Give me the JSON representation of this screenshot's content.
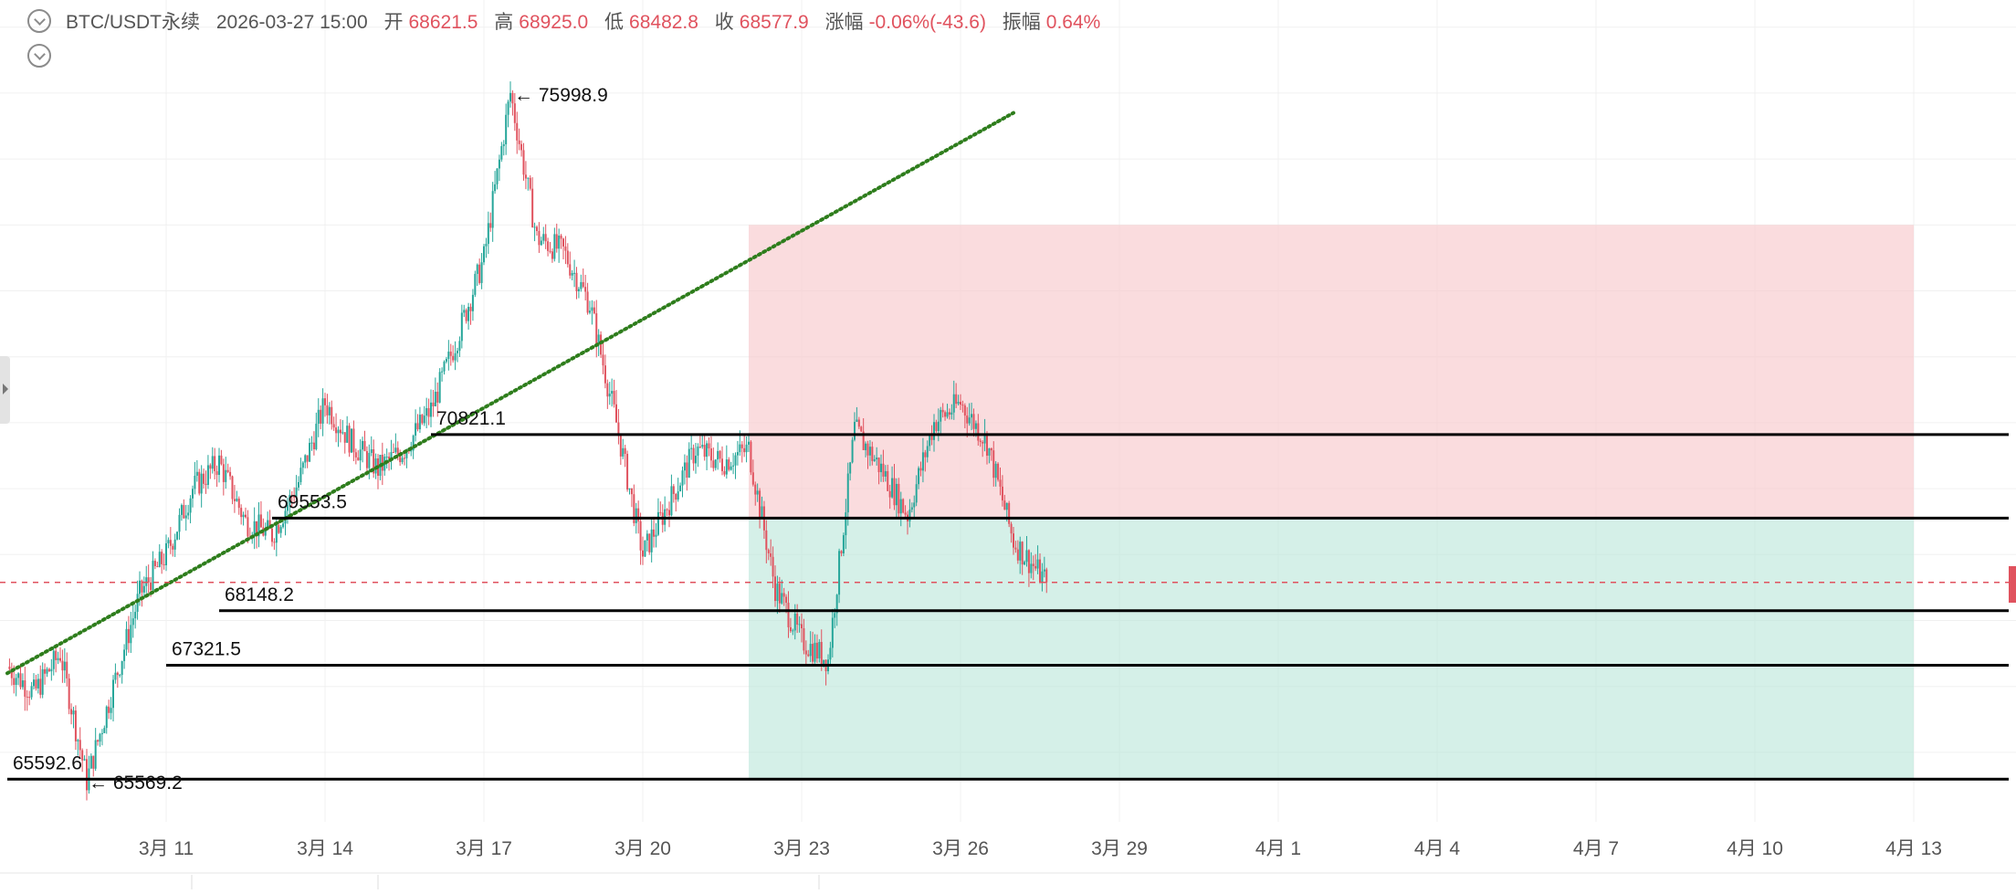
{
  "header": {
    "symbol": "BTC/USDT永续",
    "datetime": "2026-03-27 15:00",
    "open_label": "开",
    "open_value": "68621.5",
    "high_label": "高",
    "high_value": "68925.0",
    "low_label": "低",
    "low_value": "68482.8",
    "close_label": "收",
    "close_value": "68577.9",
    "change_label": "涨幅",
    "change_value": "-0.06%(-43.6)",
    "amplitude_label": "振幅",
    "amplitude_value": "0.64%"
  },
  "colors": {
    "up": "#26a69a",
    "down": "#e0525e",
    "risk_zone": "#f8c9cc",
    "reward_zone": "#b9e6d8",
    "trendline": "#2e7d1c",
    "level_line": "#000000"
  },
  "chart_data": {
    "type": "candlestick",
    "timeframe_note": "hourly candles",
    "x_tick_labels": [
      "3月 11",
      "3月 14",
      "3月 17",
      "3月 20",
      "3月 23",
      "3月 26",
      "3月 29",
      "4月 1",
      "4月 4",
      "4月 7",
      "4月 10",
      "4月 13"
    ],
    "price_range": [
      65000,
      77000
    ],
    "grid": true,
    "current_price": 68577.9,
    "current_price_line_color": "#e0525e",
    "price_path": [
      [
        "03-08 00:00",
        67300
      ],
      [
        "03-08 12:00",
        66900
      ],
      [
        "03-09 00:00",
        67500
      ],
      [
        "03-09 12:00",
        65570
      ],
      [
        "03-10 00:00",
        67000
      ],
      [
        "03-10 12:00",
        68400
      ],
      [
        "03-11 00:00",
        69000
      ],
      [
        "03-11 12:00",
        70000
      ],
      [
        "03-12 00:00",
        70400
      ],
      [
        "03-12 12:00",
        69500
      ],
      [
        "03-13 00:00",
        69300
      ],
      [
        "03-13 12:00",
        70100
      ],
      [
        "03-14 00:00",
        71300
      ],
      [
        "03-14 12:00",
        70700
      ],
      [
        "03-15 00:00",
        70300
      ],
      [
        "03-15 12:00",
        70600
      ],
      [
        "03-16 00:00",
        71200
      ],
      [
        "03-16 12:00",
        72300
      ],
      [
        "03-17 00:00",
        73500
      ],
      [
        "03-17 12:00",
        75998.9
      ],
      [
        "03-18 00:00",
        73800
      ],
      [
        "03-18 12:00",
        73600
      ],
      [
        "03-19 00:00",
        72800
      ],
      [
        "03-19 12:00",
        71000
      ],
      [
        "03-20 00:00",
        69000
      ],
      [
        "03-20 12:00",
        69800
      ],
      [
        "03-21 00:00",
        70600
      ],
      [
        "03-21 12:00",
        70400
      ],
      [
        "03-22 00:00",
        70600
      ],
      [
        "03-22 12:00",
        68500
      ],
      [
        "03-23 00:00",
        67700
      ],
      [
        "03-23 12:00",
        67400
      ],
      [
        "03-24 00:00",
        70900
      ],
      [
        "03-24 12:00",
        70300
      ],
      [
        "03-25 00:00",
        69600
      ],
      [
        "03-25 12:00",
        71000
      ],
      [
        "03-26 00:00",
        71300
      ],
      [
        "03-26 12:00",
        70700
      ],
      [
        "03-27 00:00",
        69200
      ],
      [
        "03-27 15:00",
        68577.9
      ]
    ],
    "annotations": [
      {
        "text": "← 75998.9",
        "type": "high_marker",
        "price": 75998.9
      },
      {
        "text": "← 65569.2",
        "type": "low_marker",
        "price": 65569.2
      }
    ],
    "horizontal_levels": [
      {
        "label": "70821.1",
        "price": 70821.1,
        "start_date": "03-16"
      },
      {
        "label": "69553.5",
        "price": 69553.5,
        "start_date": "03-13"
      },
      {
        "label": "68148.2",
        "price": 68148.2,
        "start_date": "03-12"
      },
      {
        "label": "67321.5",
        "price": 67321.5,
        "start_date": "03-11"
      },
      {
        "label": "65592.6",
        "price": 65592.6,
        "start_date": "03-08"
      }
    ],
    "trendline": {
      "style": "dotted",
      "from": [
        "03-08 00:00",
        67200
      ],
      "to": [
        "03-27 00:00",
        75700
      ]
    },
    "position_tool": {
      "start": "03-22",
      "end": "04-13",
      "entry": 69553.5,
      "stop_top": 74000,
      "target": 65592.6
    }
  }
}
